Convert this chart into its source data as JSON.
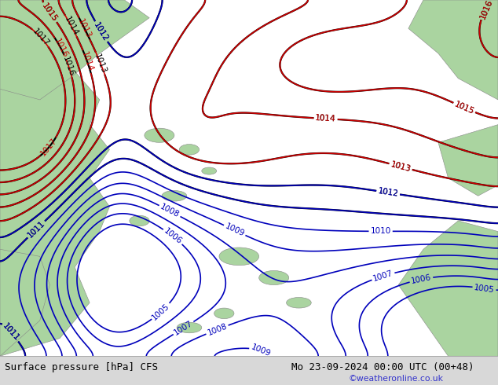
{
  "title_left": "Surface pressure [hPa] CFS",
  "title_right": "Mo 23-09-2024 00:00 UTC (00+48)",
  "credit": "©weatheronline.co.uk",
  "bg_land_color": "#aad4a0",
  "bg_sea_color": "#c8c8c8",
  "fig_width": 6.34,
  "fig_height": 4.9,
  "dpi": 100,
  "bottom_bar_color": "#d8d8d8",
  "title_font_size": 9.0,
  "credit_color": "#3333cc",
  "black_levels": [
    1011,
    1012,
    1013,
    1014,
    1015,
    1016,
    1017
  ],
  "blue_levels": [
    1005,
    1006,
    1007,
    1008,
    1009,
    1010,
    1011,
    1012
  ],
  "red_levels": [
    1013,
    1014,
    1015,
    1016,
    1017
  ]
}
